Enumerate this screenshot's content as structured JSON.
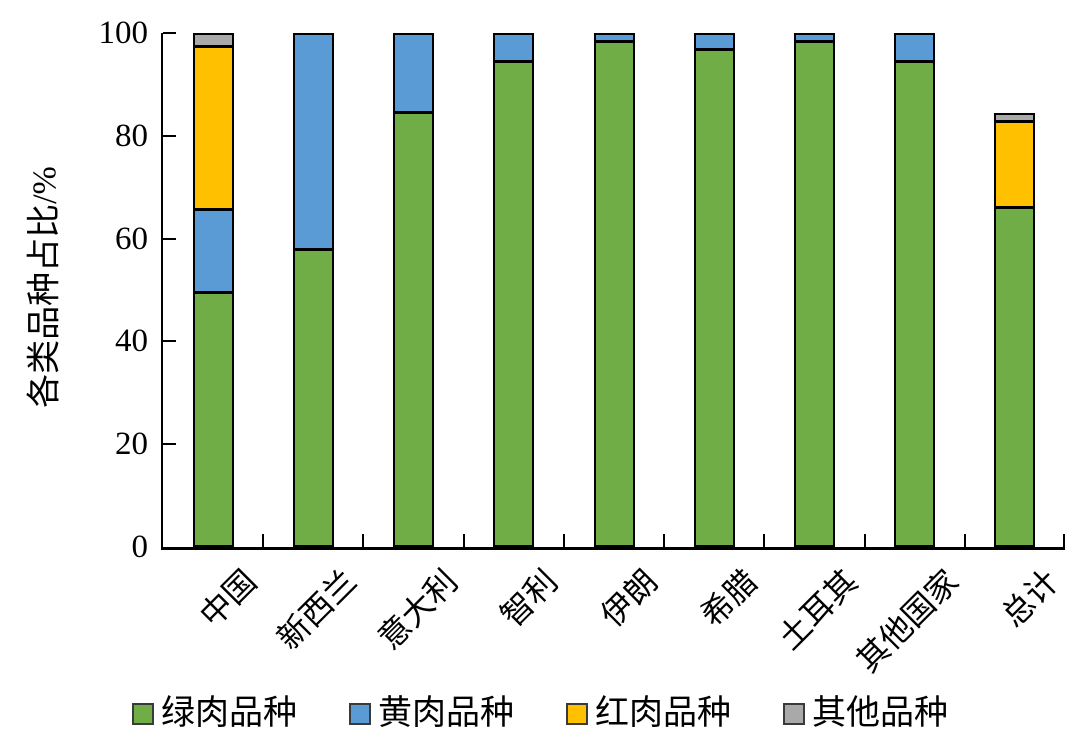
{
  "figure": {
    "background": "#ffffff"
  },
  "chart_data": {
    "type": "bar",
    "stacked": true,
    "title": "",
    "ylabel": "各类品种占比/%",
    "xlabel": "",
    "ylim": [
      0,
      100
    ],
    "yticks": [
      0,
      20,
      40,
      60,
      80,
      100
    ],
    "grid": false,
    "legend_position": "bottom",
    "bar_outline_color": "#000000",
    "categories": [
      "中国",
      "新西兰",
      "意大利",
      "智利",
      "伊朗",
      "希腊",
      "土耳其",
      "其他国家",
      "总计"
    ],
    "series": [
      {
        "name": "绿肉品种",
        "color": "#70AD47",
        "values": [
          50,
          58,
          85,
          95,
          99,
          97.5,
          99,
          95,
          67
        ]
      },
      {
        "name": "黄肉品种",
        "color": "#5B9BD5",
        "values": [
          16,
          42,
          15,
          5,
          1,
          2.5,
          1,
          5,
          0
        ]
      },
      {
        "name": "红肉品种",
        "color": "#FFC000",
        "values": [
          32,
          0,
          0,
          0,
          0,
          0,
          0,
          0,
          16.5
        ]
      },
      {
        "name": "其他品种",
        "color": "#A9A9A9",
        "values": [
          2,
          0,
          0,
          0,
          0,
          0,
          0,
          0,
          1
        ]
      }
    ]
  }
}
